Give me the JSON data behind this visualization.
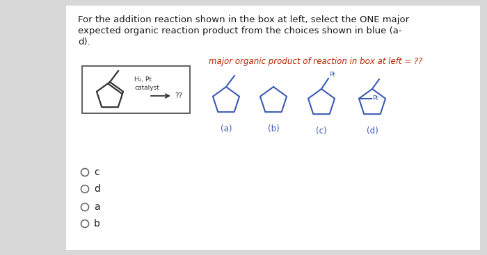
{
  "bg_color": "#d8d8d8",
  "panel_bg": "#efefef",
  "title_text1": "For the addition reaction shown in the box at left, select the ONE major",
  "title_text2": "expected organic reaction product from the choices shown in blue (a-",
  "title_text3": "d).",
  "question_label": "major organic product of reaction in box at left = ??",
  "reaction_label1": "H₂, Pt",
  "reaction_label2": "catalyst",
  "choices": [
    "(a)",
    "(b)",
    "(c)",
    "(d)"
  ],
  "radio_labels": [
    "c",
    "d",
    "a",
    "b"
  ],
  "molecule_color": "#3a5ab0",
  "text_color": "#1a1a1a",
  "question_color": "#bb2200"
}
